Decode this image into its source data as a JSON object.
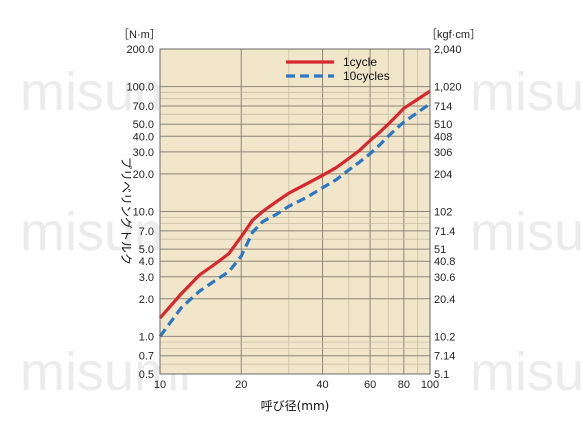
{
  "watermark": "misumi",
  "chart_data": {
    "type": "line",
    "xlabel": "呼び径(mm)",
    "ylabel": "プリベリングトルク",
    "y_unit_left": "［N·m］",
    "y_unit_right": "［kgf·cm］",
    "x_scale": "log",
    "y_scale": "log",
    "xlim": [
      10,
      100
    ],
    "ylim": [
      0.5,
      200
    ],
    "x_ticks": [
      10,
      20,
      40,
      60,
      80,
      100
    ],
    "x_tick_labels": [
      "10",
      "20",
      "40",
      "60",
      "80",
      "100"
    ],
    "y_ticks_left": [
      0.5,
      0.7,
      1.0,
      2.0,
      3.0,
      4.0,
      5.0,
      7.0,
      10.0,
      20.0,
      30.0,
      40.0,
      50.0,
      70.0,
      100.0,
      200.0
    ],
    "y_tick_labels_left": [
      "0.5",
      "0.7",
      "1.0",
      "2.0",
      "3.0",
      "4.0",
      "5.0",
      "7.0",
      "10.0",
      "20.0",
      "30.0",
      "40.0",
      "50.0",
      "70.0",
      "100.0",
      "200.0"
    ],
    "y_tick_labels_right": [
      "5.1",
      "7.14",
      "10.2",
      "20.4",
      "30.6",
      "40.8",
      "51",
      "71.4",
      "102",
      "204",
      "306",
      "408",
      "510",
      "714",
      "1,020",
      "2,040"
    ],
    "grid": true,
    "legend_position": "top-right",
    "background": "#f1e6c9",
    "series": [
      {
        "name": "1cycle",
        "color": "#d7262e",
        "style": "solid",
        "x": [
          10,
          12,
          14,
          16,
          18,
          20,
          22,
          24,
          27,
          30,
          35,
          40,
          45,
          50,
          55,
          60,
          65,
          70,
          75,
          80,
          90,
          100
        ],
        "y": [
          1.4,
          2.2,
          3.1,
          3.8,
          4.6,
          6.3,
          8.5,
          10.0,
          12.0,
          14.0,
          16.7,
          19.5,
          22.5,
          26.5,
          31.0,
          37.0,
          43.0,
          50.0,
          58.0,
          67.0,
          79.0,
          92.0
        ]
      },
      {
        "name": "10cycles",
        "color": "#2a78c4",
        "style": "dashed",
        "x": [
          10,
          12,
          14,
          16,
          18,
          20,
          22,
          24,
          27,
          30,
          35,
          40,
          45,
          50,
          55,
          60,
          65,
          70,
          75,
          80,
          90,
          100
        ],
        "y": [
          1.0,
          1.7,
          2.3,
          2.8,
          3.3,
          4.4,
          6.8,
          8.3,
          9.5,
          11.0,
          13.0,
          15.5,
          18.0,
          21.5,
          25.0,
          29.0,
          34.0,
          40.0,
          46.0,
          52.0,
          62.0,
          73.0
        ]
      }
    ]
  }
}
